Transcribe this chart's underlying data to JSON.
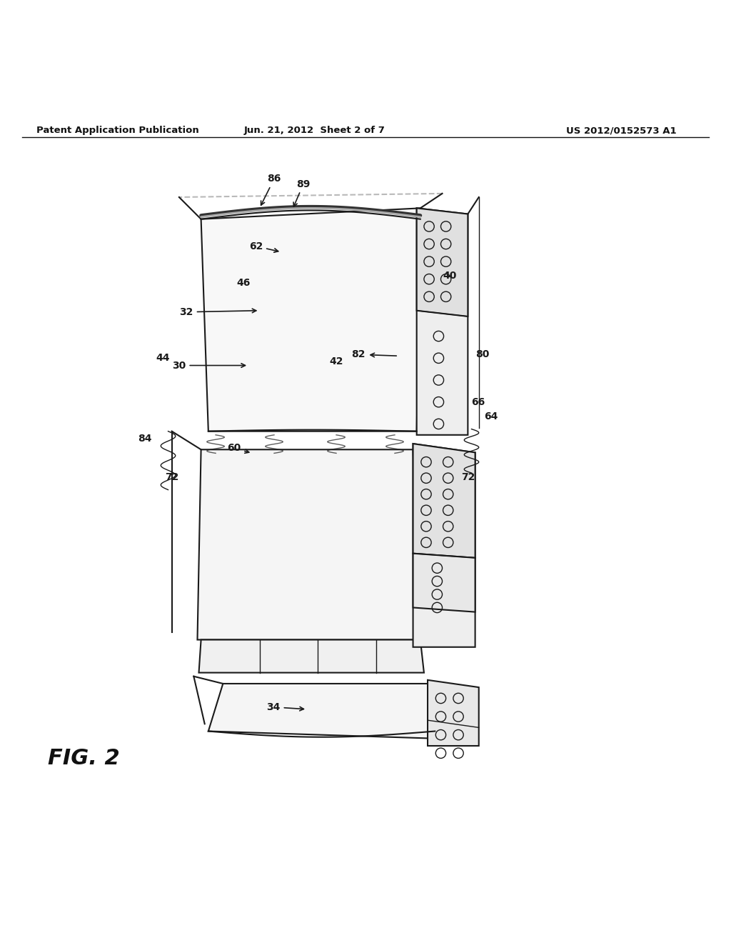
{
  "bg_color": "#ffffff",
  "header_left": "Patent Application Publication",
  "header_mid": "Jun. 21, 2012  Sheet 2 of 7",
  "header_right": "US 2012/0152573 A1",
  "fig_label": "FIG. 2",
  "color_main": "#1a1a1a",
  "lw_main": 1.5,
  "lw_thin": 1.0
}
